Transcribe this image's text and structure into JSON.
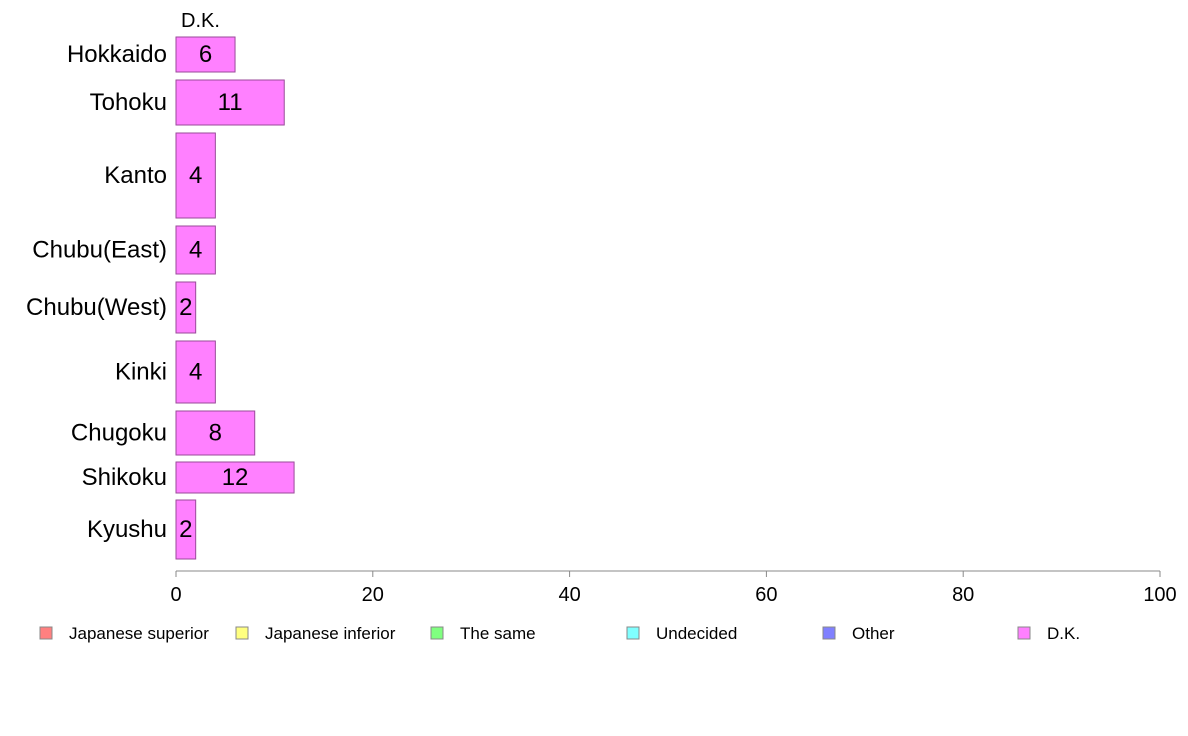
{
  "chart_data": {
    "type": "bar",
    "orientation": "horizontal",
    "stacked": true,
    "series_title": "D.K.",
    "categories": [
      "Hokkaido",
      "Tohoku",
      "Kanto",
      "Chubu(East)",
      "Chubu(West)",
      "Kinki",
      "Chugoku",
      "Shikoku",
      "Kyushu"
    ],
    "series": [
      {
        "name": "Japanese superior",
        "color": "#ff8080",
        "values": [
          0,
          0,
          0,
          0,
          0,
          0,
          0,
          0,
          0
        ]
      },
      {
        "name": "Japanese inferior",
        "color": "#ffff80",
        "values": [
          0,
          0,
          0,
          0,
          0,
          0,
          0,
          0,
          0
        ]
      },
      {
        "name": "The same",
        "color": "#80ff80",
        "values": [
          0,
          0,
          0,
          0,
          0,
          0,
          0,
          0,
          0
        ]
      },
      {
        "name": "Undecided",
        "color": "#80ffff",
        "values": [
          0,
          0,
          0,
          0,
          0,
          0,
          0,
          0,
          0
        ]
      },
      {
        "name": "Other",
        "color": "#8080ff",
        "values": [
          0,
          0,
          0,
          0,
          0,
          0,
          0,
          0,
          0
        ]
      },
      {
        "name": "D.K.",
        "color": "#ff80ff",
        "values": [
          6,
          11,
          4,
          4,
          2,
          4,
          8,
          12,
          2
        ]
      }
    ],
    "data_labels": [
      "6",
      "11",
      "4",
      "4",
      "2",
      "4",
      "8",
      "12",
      "2"
    ],
    "xlim": [
      0,
      100
    ],
    "xticks": [
      0,
      20,
      40,
      60,
      80,
      100
    ],
    "grid": false,
    "legend_position": "bottom"
  }
}
